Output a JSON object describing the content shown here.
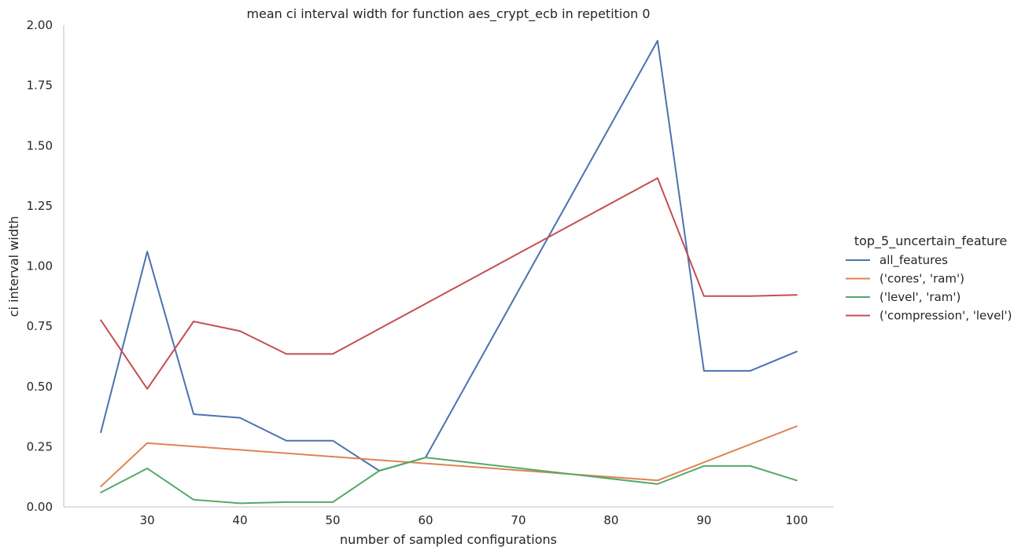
{
  "chart_data": {
    "type": "line",
    "title": "mean ci interval width for function aes_crypt_ecb in repetition 0",
    "xlabel": "number of sampled configurations",
    "ylabel": "ci interval width",
    "xlim": [
      21,
      104
    ],
    "ylim": [
      0,
      2
    ],
    "xticks": [
      30,
      40,
      50,
      60,
      70,
      80,
      90,
      100
    ],
    "yticks": [
      "0.00",
      "0.25",
      "0.50",
      "0.75",
      "1.00",
      "1.25",
      "1.50",
      "1.75",
      "2.00"
    ],
    "grid": false,
    "legend": {
      "title": "top_5_uncertain_feature",
      "placement": "right, outside plot"
    },
    "series": [
      {
        "name": "all_features",
        "color": "#4c72b0",
        "x": [
          25,
          30,
          35,
          40,
          45,
          50,
          55,
          60,
          85,
          90,
          95,
          100
        ],
        "values": [
          0.31,
          1.06,
          0.385,
          0.37,
          0.275,
          0.275,
          0.15,
          0.205,
          1.935,
          0.565,
          0.565,
          0.645
        ]
      },
      {
        "name": "('cores', 'ram')",
        "color": "#dd8452",
        "x": [
          25,
          30,
          85,
          100
        ],
        "values": [
          0.085,
          0.265,
          0.11,
          0.335
        ]
      },
      {
        "name": "('level', 'ram')",
        "color": "#55a868",
        "x": [
          25,
          30,
          35,
          40,
          45,
          50,
          55,
          60,
          85,
          90,
          95,
          100
        ],
        "values": [
          0.06,
          0.16,
          0.03,
          0.015,
          0.02,
          0.02,
          0.15,
          0.205,
          0.095,
          0.17,
          0.17,
          0.11
        ]
      },
      {
        "name": "('compression', 'level')",
        "color": "#c44e52",
        "x": [
          25,
          30,
          35,
          40,
          45,
          50,
          85,
          90,
          95,
          100
        ],
        "values": [
          0.775,
          0.49,
          0.77,
          0.73,
          0.635,
          0.635,
          1.365,
          0.875,
          0.875,
          0.88
        ]
      }
    ]
  }
}
